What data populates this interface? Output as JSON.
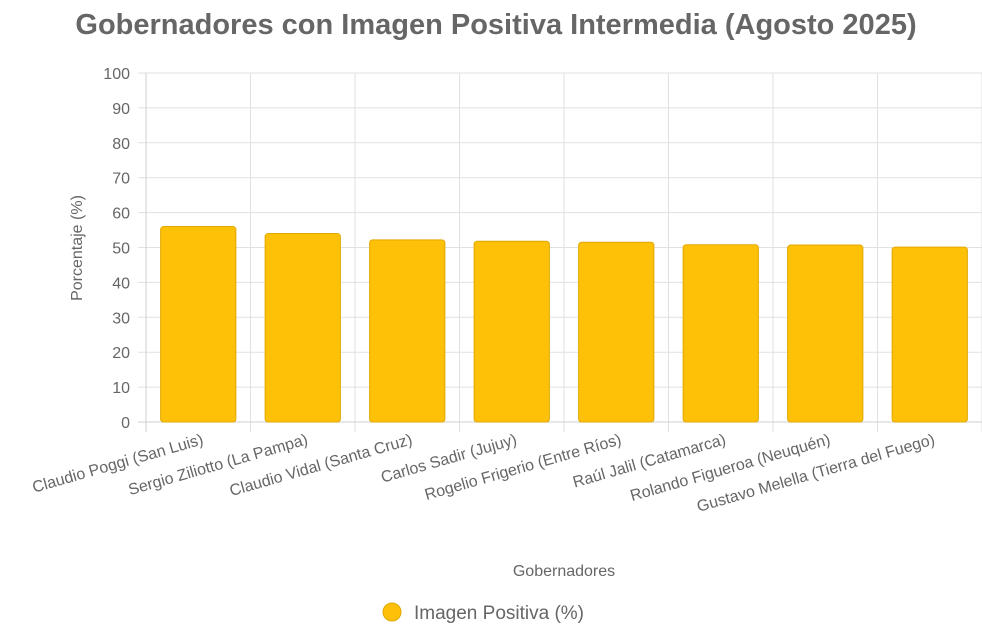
{
  "chart_data": {
    "type": "bar",
    "title": "Gobernadores con Imagen Positiva Intermedia (Agosto 2025)",
    "xlabel": "Gobernadores",
    "ylabel": "Porcentaje (%)",
    "ylim": [
      0,
      100
    ],
    "yticks": [
      "0",
      "10",
      "20",
      "30",
      "40",
      "50",
      "60",
      "70",
      "80",
      "90",
      "100"
    ],
    "grid": true,
    "legend_position": "bottom",
    "categories": [
      "Claudio Poggi (San Luis)",
      "Sergio Ziliotto (La Pampa)",
      "Claudio Vidal (Santa Cruz)",
      "Carlos Sadir (Jujuy)",
      "Rogelio Frigerio (Entre Ríos)",
      "Raúl Jalil (Catamarca)",
      "Rolando Figueroa (Neuquén)",
      "Gustavo Melella (Tierra del Fuego)"
    ],
    "series": [
      {
        "name": "Imagen Positiva (%)",
        "values": [
          56,
          54,
          52.2,
          51.8,
          51.5,
          50.8,
          50.7,
          50.1
        ],
        "color": "#FFC107",
        "border_color": "#E0A800"
      }
    ]
  }
}
